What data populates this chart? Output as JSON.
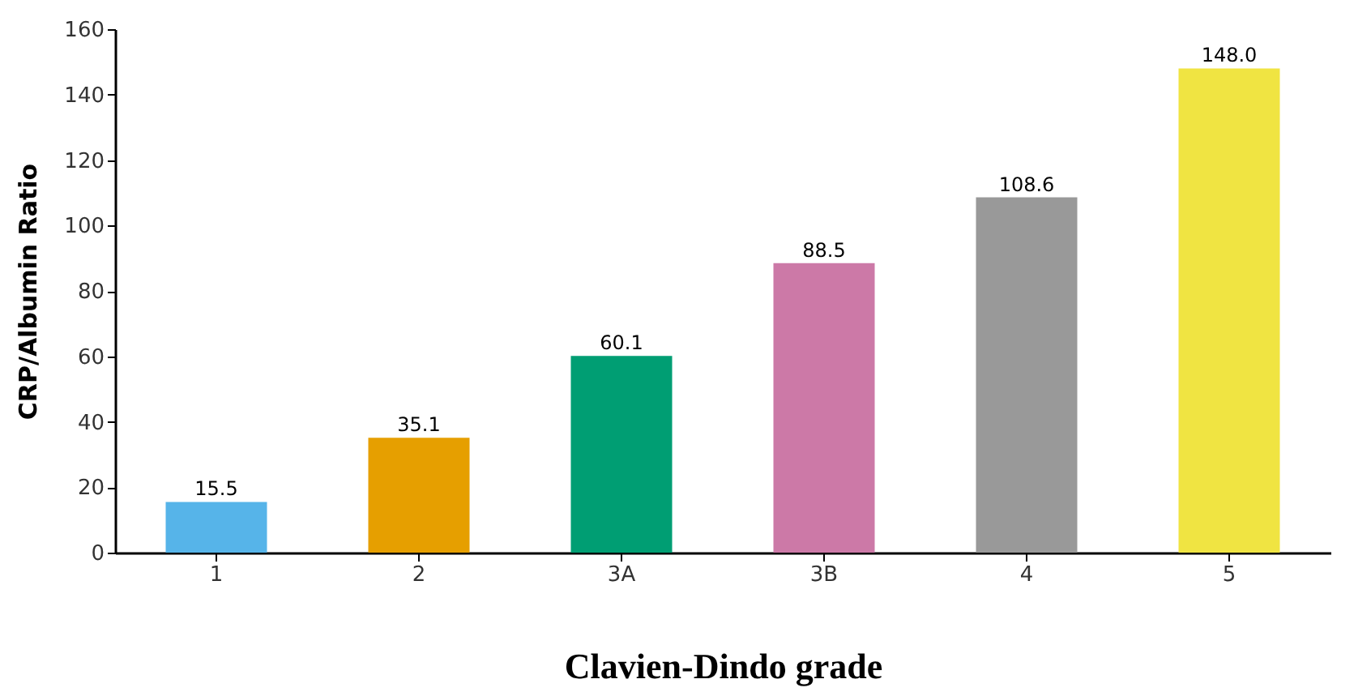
{
  "chart_data": {
    "type": "bar",
    "xlabel": "Clavien-Dindo grade",
    "ylabel": "CRP/Albumin Ratio",
    "categories": [
      "1",
      "2",
      "3A",
      "3B",
      "4",
      "5"
    ],
    "values": [
      15.5,
      35.1,
      60.1,
      88.5,
      108.6,
      148.0
    ],
    "value_labels": [
      "15.5",
      "35.1",
      "60.1",
      "88.5",
      "108.6",
      "148.0"
    ],
    "colors": [
      "#56b4e9",
      "#e69f00",
      "#009e73",
      "#cc79a7",
      "#999999",
      "#f0e442"
    ],
    "ylim": [
      0,
      160
    ],
    "yticks": [
      0,
      20,
      40,
      60,
      80,
      100,
      120,
      140,
      160
    ],
    "grid": false
  }
}
